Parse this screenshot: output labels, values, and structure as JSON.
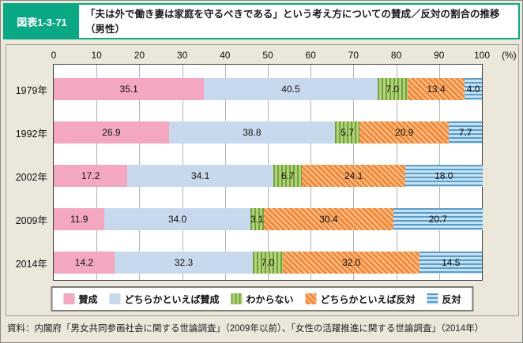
{
  "header": {
    "figure_label": "図表1-3-71",
    "title": "「夫は外で働き妻は家庭を守るべきである」という考え方についての賛成／反対の割合の推移（男性）"
  },
  "chart_data": {
    "type": "bar",
    "orientation": "horizontal-stacked",
    "categories": [
      "1979年",
      "1992年",
      "2002年",
      "2009年",
      "2014年"
    ],
    "series": [
      {
        "name": "賛成",
        "pattern": "solid",
        "color": "#f3a7c0",
        "css": "p-pink",
        "values": [
          35.1,
          26.9,
          17.2,
          11.9,
          14.2
        ]
      },
      {
        "name": "どちらかといえば賛成",
        "pattern": "solid",
        "color": "#c9d9ed",
        "css": "p-lblue",
        "values": [
          40.5,
          38.8,
          34.1,
          34.0,
          32.3
        ]
      },
      {
        "name": "わからない",
        "pattern": "vertical-stripes",
        "color": "#8fb95a",
        "css": "p-green",
        "values": [
          7.0,
          5.7,
          6.7,
          3.1,
          7.0
        ]
      },
      {
        "name": "どちらかといえば反対",
        "pattern": "diagonal-stripes",
        "color": "#f1893a",
        "css": "p-orange",
        "values": [
          13.4,
          20.9,
          24.1,
          30.4,
          32.0
        ]
      },
      {
        "name": "反対",
        "pattern": "horizontal-stripes",
        "color": "#8cc0e0",
        "css": "p-blue",
        "values": [
          4.0,
          7.7,
          18.0,
          20.7,
          14.5
        ]
      }
    ],
    "x_ticks": [
      0,
      10,
      20,
      30,
      40,
      50,
      60,
      70,
      80,
      90,
      100
    ],
    "x_unit": "(%)",
    "xlim": [
      0,
      100
    ],
    "value_labels": true,
    "grid": true,
    "legend_position": "bottom"
  },
  "source": "資料：内閣府「男女共同参画社会に関する世論調査」（2009年以前）、「女性の活躍推進に関する世論調査」（2014年）"
}
